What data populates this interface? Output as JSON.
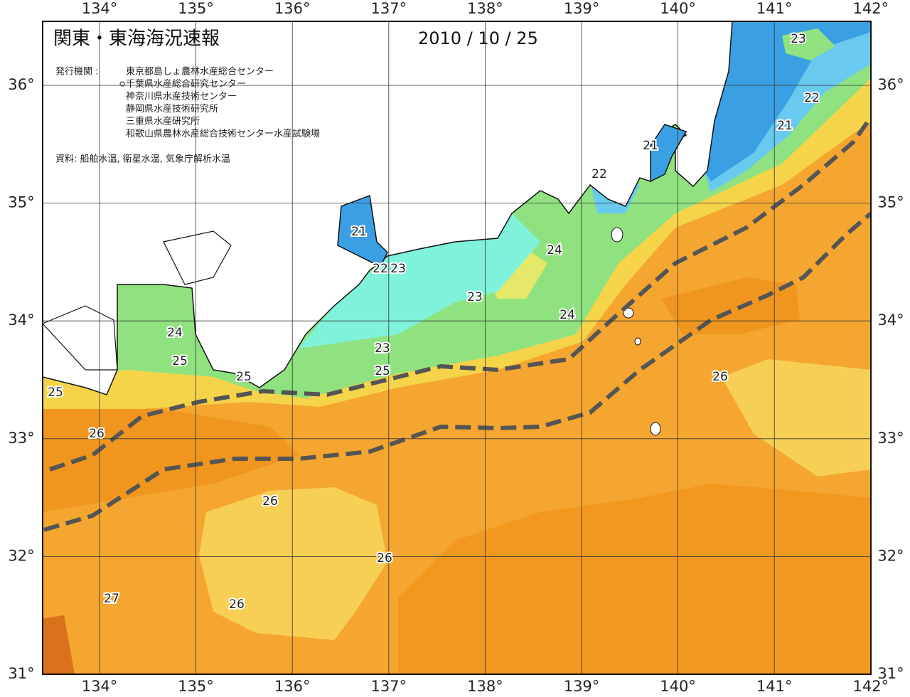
{
  "header": {
    "title": "関東・東海海況速報",
    "date": "2010 / 10 / 25"
  },
  "publishers": {
    "label": "発行機関 :",
    "items": [
      "東京都島しょ農林水産総合センター",
      "千葉県水産総合研究センター",
      "神奈川県水産技術センター",
      "静岡県水産技術研究所",
      "三重県水産研究所",
      "和歌山県農林水産総合技術センター水産試験場"
    ]
  },
  "note": "資料: 船舶水温, 衛星水温, 気象庁解析水温",
  "map": {
    "longitudes": [
      {
        "value": 134,
        "label": "134°"
      },
      {
        "value": 135,
        "label": "135°"
      },
      {
        "value": 136,
        "label": "136°"
      },
      {
        "value": 137,
        "label": "137°"
      },
      {
        "value": 138,
        "label": "138°"
      },
      {
        "value": 139,
        "label": "139°"
      },
      {
        "value": 140,
        "label": "140°"
      },
      {
        "value": 141,
        "label": "141°"
      },
      {
        "value": 142,
        "label": "142°"
      }
    ],
    "latitudes": [
      {
        "value": 36,
        "label": "36°"
      },
      {
        "value": 35,
        "label": "35°"
      },
      {
        "value": 34,
        "label": "34°"
      },
      {
        "value": 33,
        "label": "33°"
      },
      {
        "value": 32,
        "label": "32°"
      },
      {
        "value": 31,
        "label": "31°"
      }
    ],
    "contour_labels": [
      "23",
      "22",
      "21",
      "21",
      "22",
      "21",
      "22",
      "23",
      "24",
      "23",
      "24",
      "24",
      "25",
      "23",
      "25",
      "25",
      "25",
      "26",
      "26",
      "26",
      "26",
      "27",
      "26"
    ]
  }
}
